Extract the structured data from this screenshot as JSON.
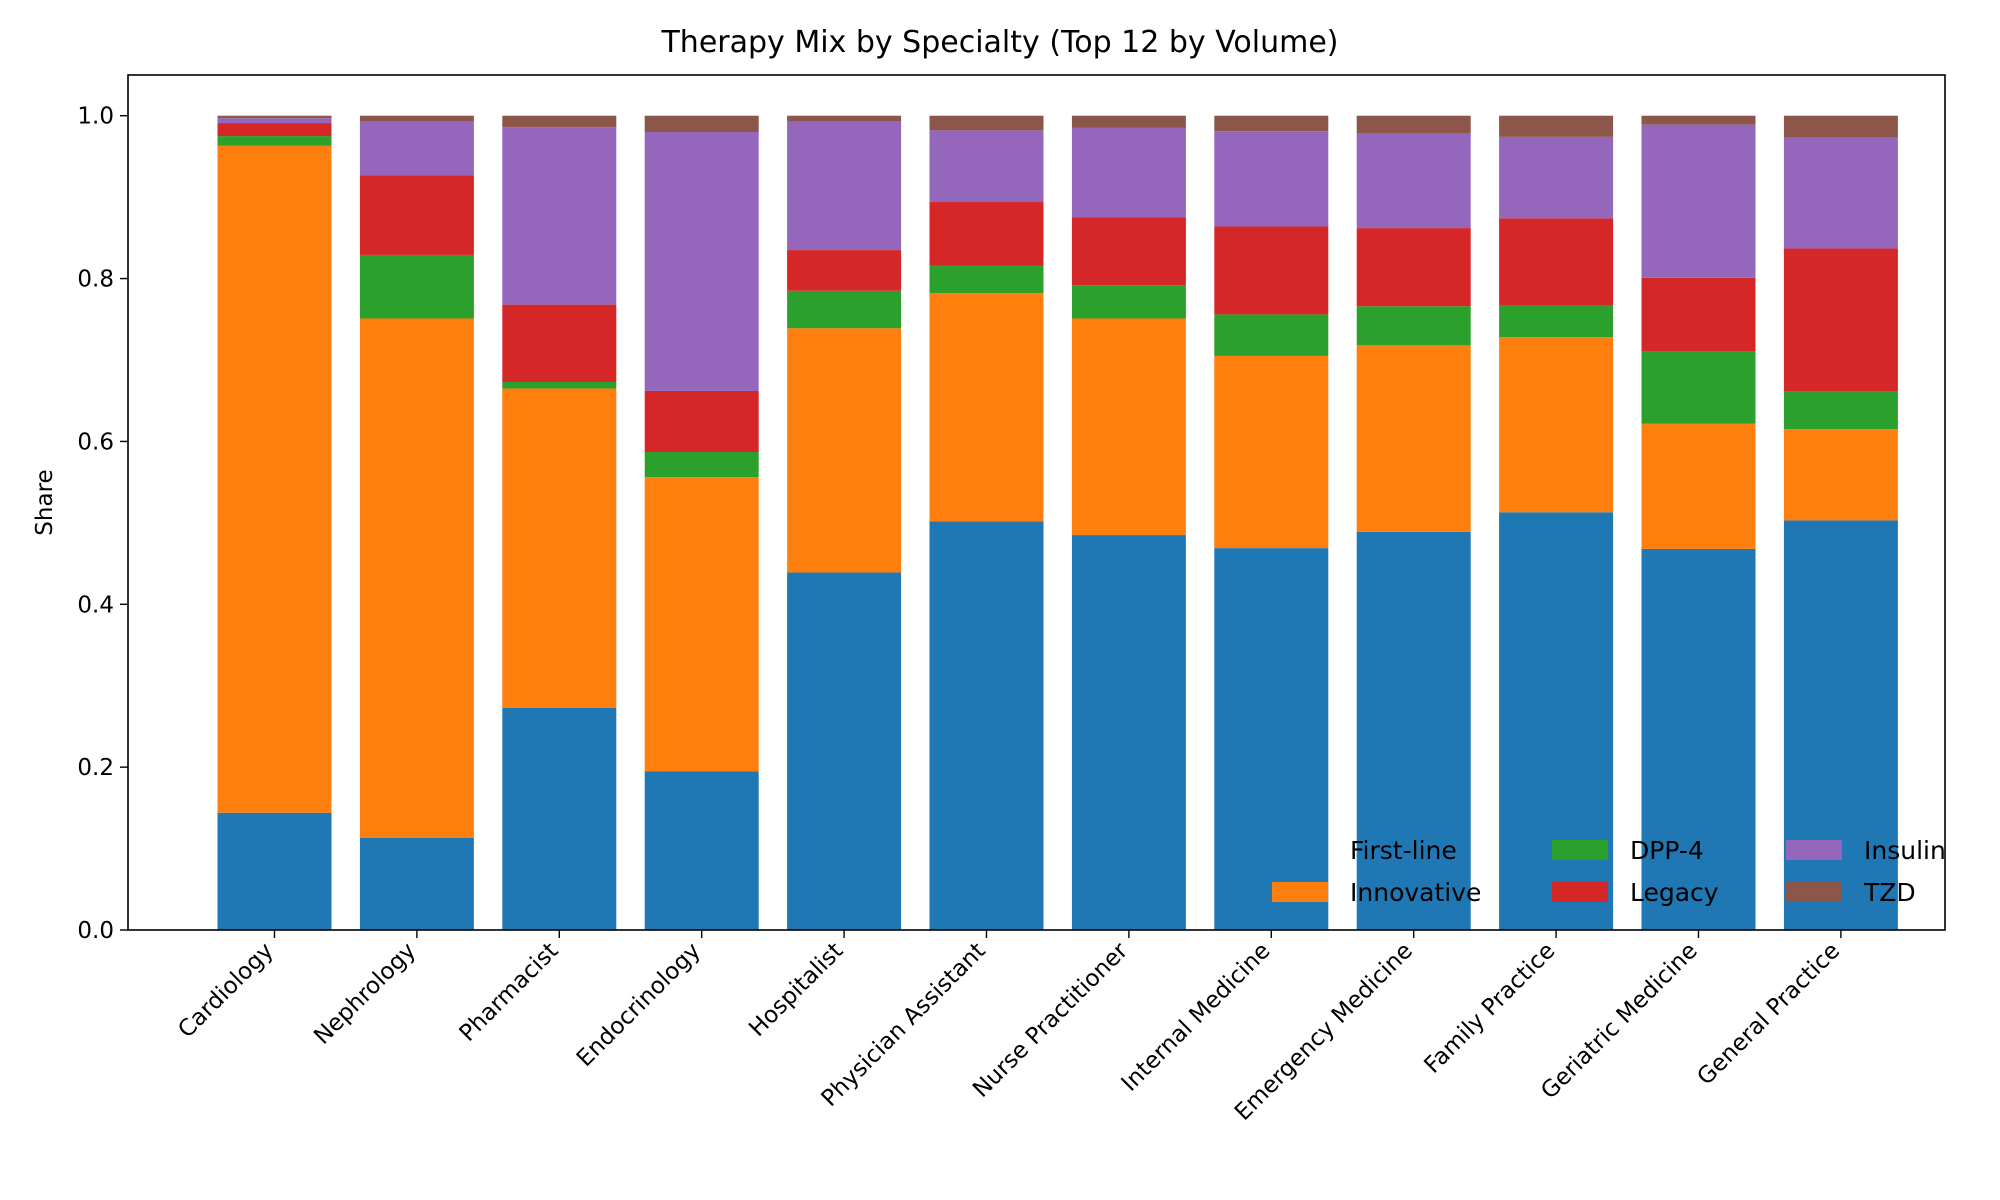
{
  "chart_data": {
    "type": "bar",
    "stacked": true,
    "title": "Therapy Mix by Specialty (Top 12 by Volume)",
    "xlabel": "",
    "ylabel": "Share",
    "ylim": [
      0,
      1.05
    ],
    "yticks": [
      "0.0",
      "0.2",
      "0.4",
      "0.6",
      "0.8",
      "1.0"
    ],
    "grid": false,
    "legend_position": "lower-right",
    "legend_columns": 3,
    "categories": [
      "Cardiology",
      "Nephrology",
      "Pharmacist",
      "Endocrinology",
      "Hospitalist",
      "Physician Assistant",
      "Nurse Practitioner",
      "Internal Medicine",
      "Emergency Medicine",
      "Family Practice",
      "Geriatric Medicine",
      "General Practice"
    ],
    "series": [
      {
        "name": "First-line",
        "color": "#1f77b4",
        "values": [
          0.144,
          0.113,
          0.273,
          0.195,
          0.439,
          0.502,
          0.485,
          0.469,
          0.489,
          0.513,
          0.468,
          0.503
        ]
      },
      {
        "name": "Innovative",
        "color": "#ff7f0e",
        "values": [
          0.819,
          0.638,
          0.392,
          0.361,
          0.3,
          0.28,
          0.266,
          0.236,
          0.229,
          0.215,
          0.154,
          0.112
        ]
      },
      {
        "name": "DPP-4",
        "color": "#2ca02c",
        "values": [
          0.012,
          0.078,
          0.008,
          0.031,
          0.046,
          0.034,
          0.041,
          0.051,
          0.048,
          0.039,
          0.089,
          0.046
        ]
      },
      {
        "name": "Legacy",
        "color": "#d62728",
        "values": [
          0.016,
          0.098,
          0.095,
          0.075,
          0.05,
          0.078,
          0.083,
          0.108,
          0.096,
          0.107,
          0.09,
          0.176
        ]
      },
      {
        "name": "Insulin",
        "color": "#9467bd",
        "values": [
          0.006,
          0.066,
          0.218,
          0.318,
          0.158,
          0.088,
          0.11,
          0.117,
          0.116,
          0.1,
          0.188,
          0.136
        ]
      },
      {
        "name": "TZD",
        "color": "#8c564b",
        "values": [
          0.003,
          0.007,
          0.014,
          0.02,
          0.007,
          0.018,
          0.015,
          0.019,
          0.022,
          0.026,
          0.011,
          0.027
        ]
      }
    ]
  }
}
